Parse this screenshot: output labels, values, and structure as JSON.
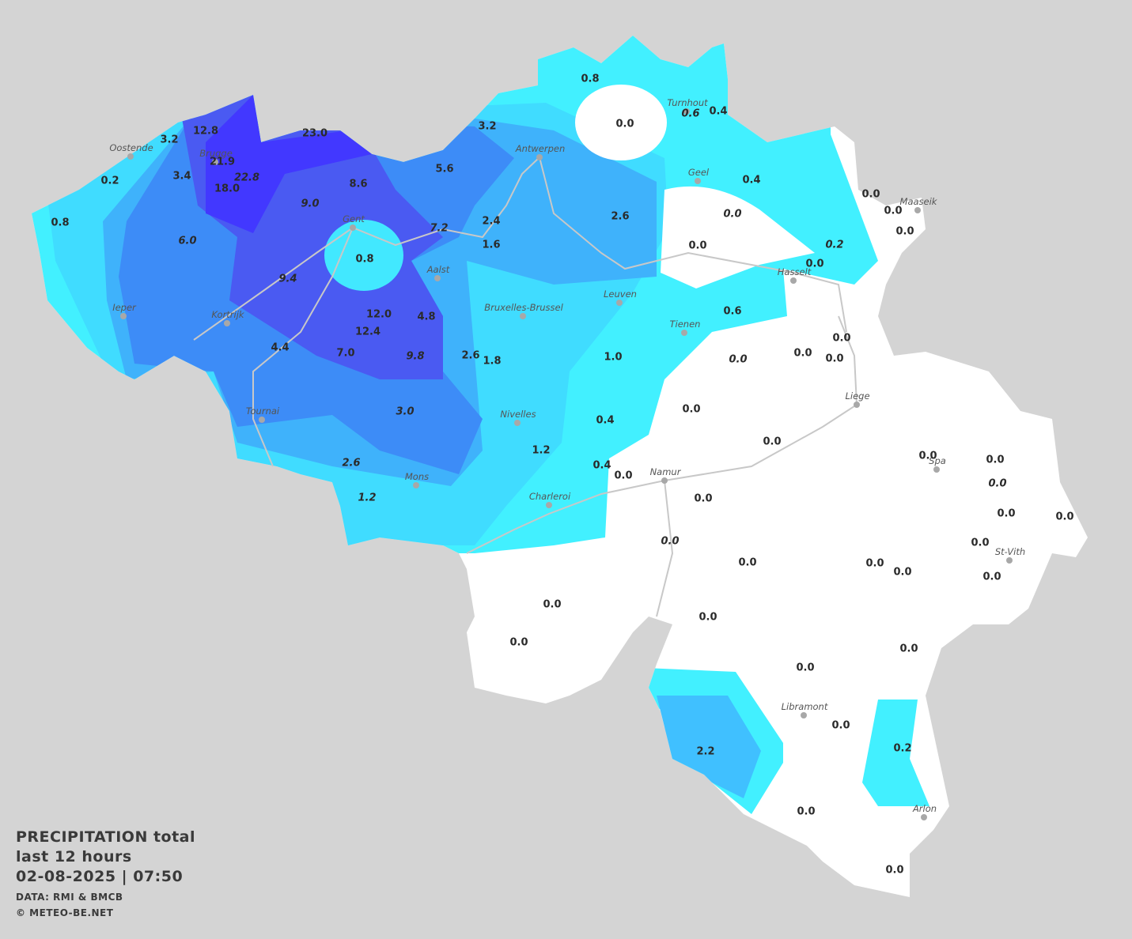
{
  "title": {
    "line1": "PRECIPITATION total",
    "line2": "last 12 hours",
    "line3": "02-08-2025  |  07:50",
    "source": "DATA: RMI & BMCB",
    "credit": "© METEO-BE.NET"
  },
  "cities": [
    "Oostende",
    "Brugge",
    "Antwerpen",
    "Turnhout",
    "Geel",
    "Maaseik",
    "Gent",
    "Aalst",
    "Ieper",
    "Kortrijk",
    "Bruxelles-Brussel",
    "Leuven",
    "Hasselt",
    "Tienen",
    "Liege",
    "Tournai",
    "Nivelles",
    "Mons",
    "Charleroi",
    "Namur",
    "Spa",
    "St-Vith",
    "Libramont",
    "Arlon"
  ],
  "values": [
    {
      "text": "12.8",
      "italic": false
    },
    {
      "text": "3.2",
      "italic": false
    },
    {
      "text": "23.0",
      "italic": false
    },
    {
      "text": "21.9",
      "italic": false
    },
    {
      "text": "22.8",
      "italic": true
    },
    {
      "text": "18.0",
      "italic": false
    },
    {
      "text": "3.4",
      "italic": false
    },
    {
      "text": "0.2",
      "italic": false
    },
    {
      "text": "0.8",
      "italic": false
    },
    {
      "text": "6.0",
      "italic": true
    },
    {
      "text": "9.0",
      "italic": true
    },
    {
      "text": "8.6",
      "italic": false
    },
    {
      "text": "5.6",
      "italic": false
    },
    {
      "text": "3.2",
      "italic": false
    },
    {
      "text": "0.8",
      "italic": false
    },
    {
      "text": "0.0",
      "italic": false
    },
    {
      "text": "0.6",
      "italic": true
    },
    {
      "text": "0.4",
      "italic": false
    },
    {
      "text": "0.4",
      "italic": false
    },
    {
      "text": "0.0",
      "italic": true
    },
    {
      "text": "0.2",
      "italic": true
    },
    {
      "text": "0.0",
      "italic": false
    },
    {
      "text": "0.0",
      "italic": false
    },
    {
      "text": "0.0",
      "italic": false
    },
    {
      "text": "0.0",
      "italic": false
    },
    {
      "text": "0.0",
      "italic": false
    },
    {
      "text": "2.6",
      "italic": false
    },
    {
      "text": "2.4",
      "italic": false
    },
    {
      "text": "1.6",
      "italic": false
    },
    {
      "text": "7.2",
      "italic": true
    },
    {
      "text": "0.8",
      "italic": false
    },
    {
      "text": "9.4",
      "italic": true
    },
    {
      "text": "12.0",
      "italic": false
    },
    {
      "text": "12.4",
      "italic": false
    },
    {
      "text": "4.8",
      "italic": false
    },
    {
      "text": "4.4",
      "italic": false
    },
    {
      "text": "7.0",
      "italic": false
    },
    {
      "text": "9.8",
      "italic": true
    },
    {
      "text": "2.6",
      "italic": false
    },
    {
      "text": "1.8",
      "italic": false
    },
    {
      "text": "1.0",
      "italic": false
    },
    {
      "text": "0.6",
      "italic": false
    },
    {
      "text": "0.0",
      "italic": false
    },
    {
      "text": "0.0",
      "italic": false
    },
    {
      "text": "0.0",
      "italic": false
    },
    {
      "text": "0.0",
      "italic": true
    },
    {
      "text": "3.0",
      "italic": true
    },
    {
      "text": "0.0",
      "italic": false
    },
    {
      "text": "0.4",
      "italic": false
    },
    {
      "text": "1.2",
      "italic": false
    },
    {
      "text": "0.0",
      "italic": false
    },
    {
      "text": "2.6",
      "italic": true
    },
    {
      "text": "0.4",
      "italic": false
    },
    {
      "text": "0.0",
      "italic": false
    },
    {
      "text": "0.0",
      "italic": false
    },
    {
      "text": "0.0",
      "italic": false
    },
    {
      "text": "0.0",
      "italic": true
    },
    {
      "text": "1.2",
      "italic": true
    },
    {
      "text": "0.0",
      "italic": false
    },
    {
      "text": "0.0",
      "italic": false
    },
    {
      "text": "0.0",
      "italic": false
    },
    {
      "text": "0.0",
      "italic": true
    },
    {
      "text": "0.0",
      "italic": false
    },
    {
      "text": "0.0",
      "italic": false
    },
    {
      "text": "0.0",
      "italic": false
    },
    {
      "text": "0.0",
      "italic": false
    },
    {
      "text": "0.0",
      "italic": false
    },
    {
      "text": "0.0",
      "italic": false
    },
    {
      "text": "0.0",
      "italic": false
    },
    {
      "text": "0.0",
      "italic": false
    },
    {
      "text": "0.0",
      "italic": false
    },
    {
      "text": "0.0",
      "italic": false
    },
    {
      "text": "0.0",
      "italic": false
    },
    {
      "text": "0.2",
      "italic": false
    },
    {
      "text": "2.2",
      "italic": false
    },
    {
      "text": "0.0",
      "italic": false
    },
    {
      "text": "0.0",
      "italic": false
    }
  ]
}
